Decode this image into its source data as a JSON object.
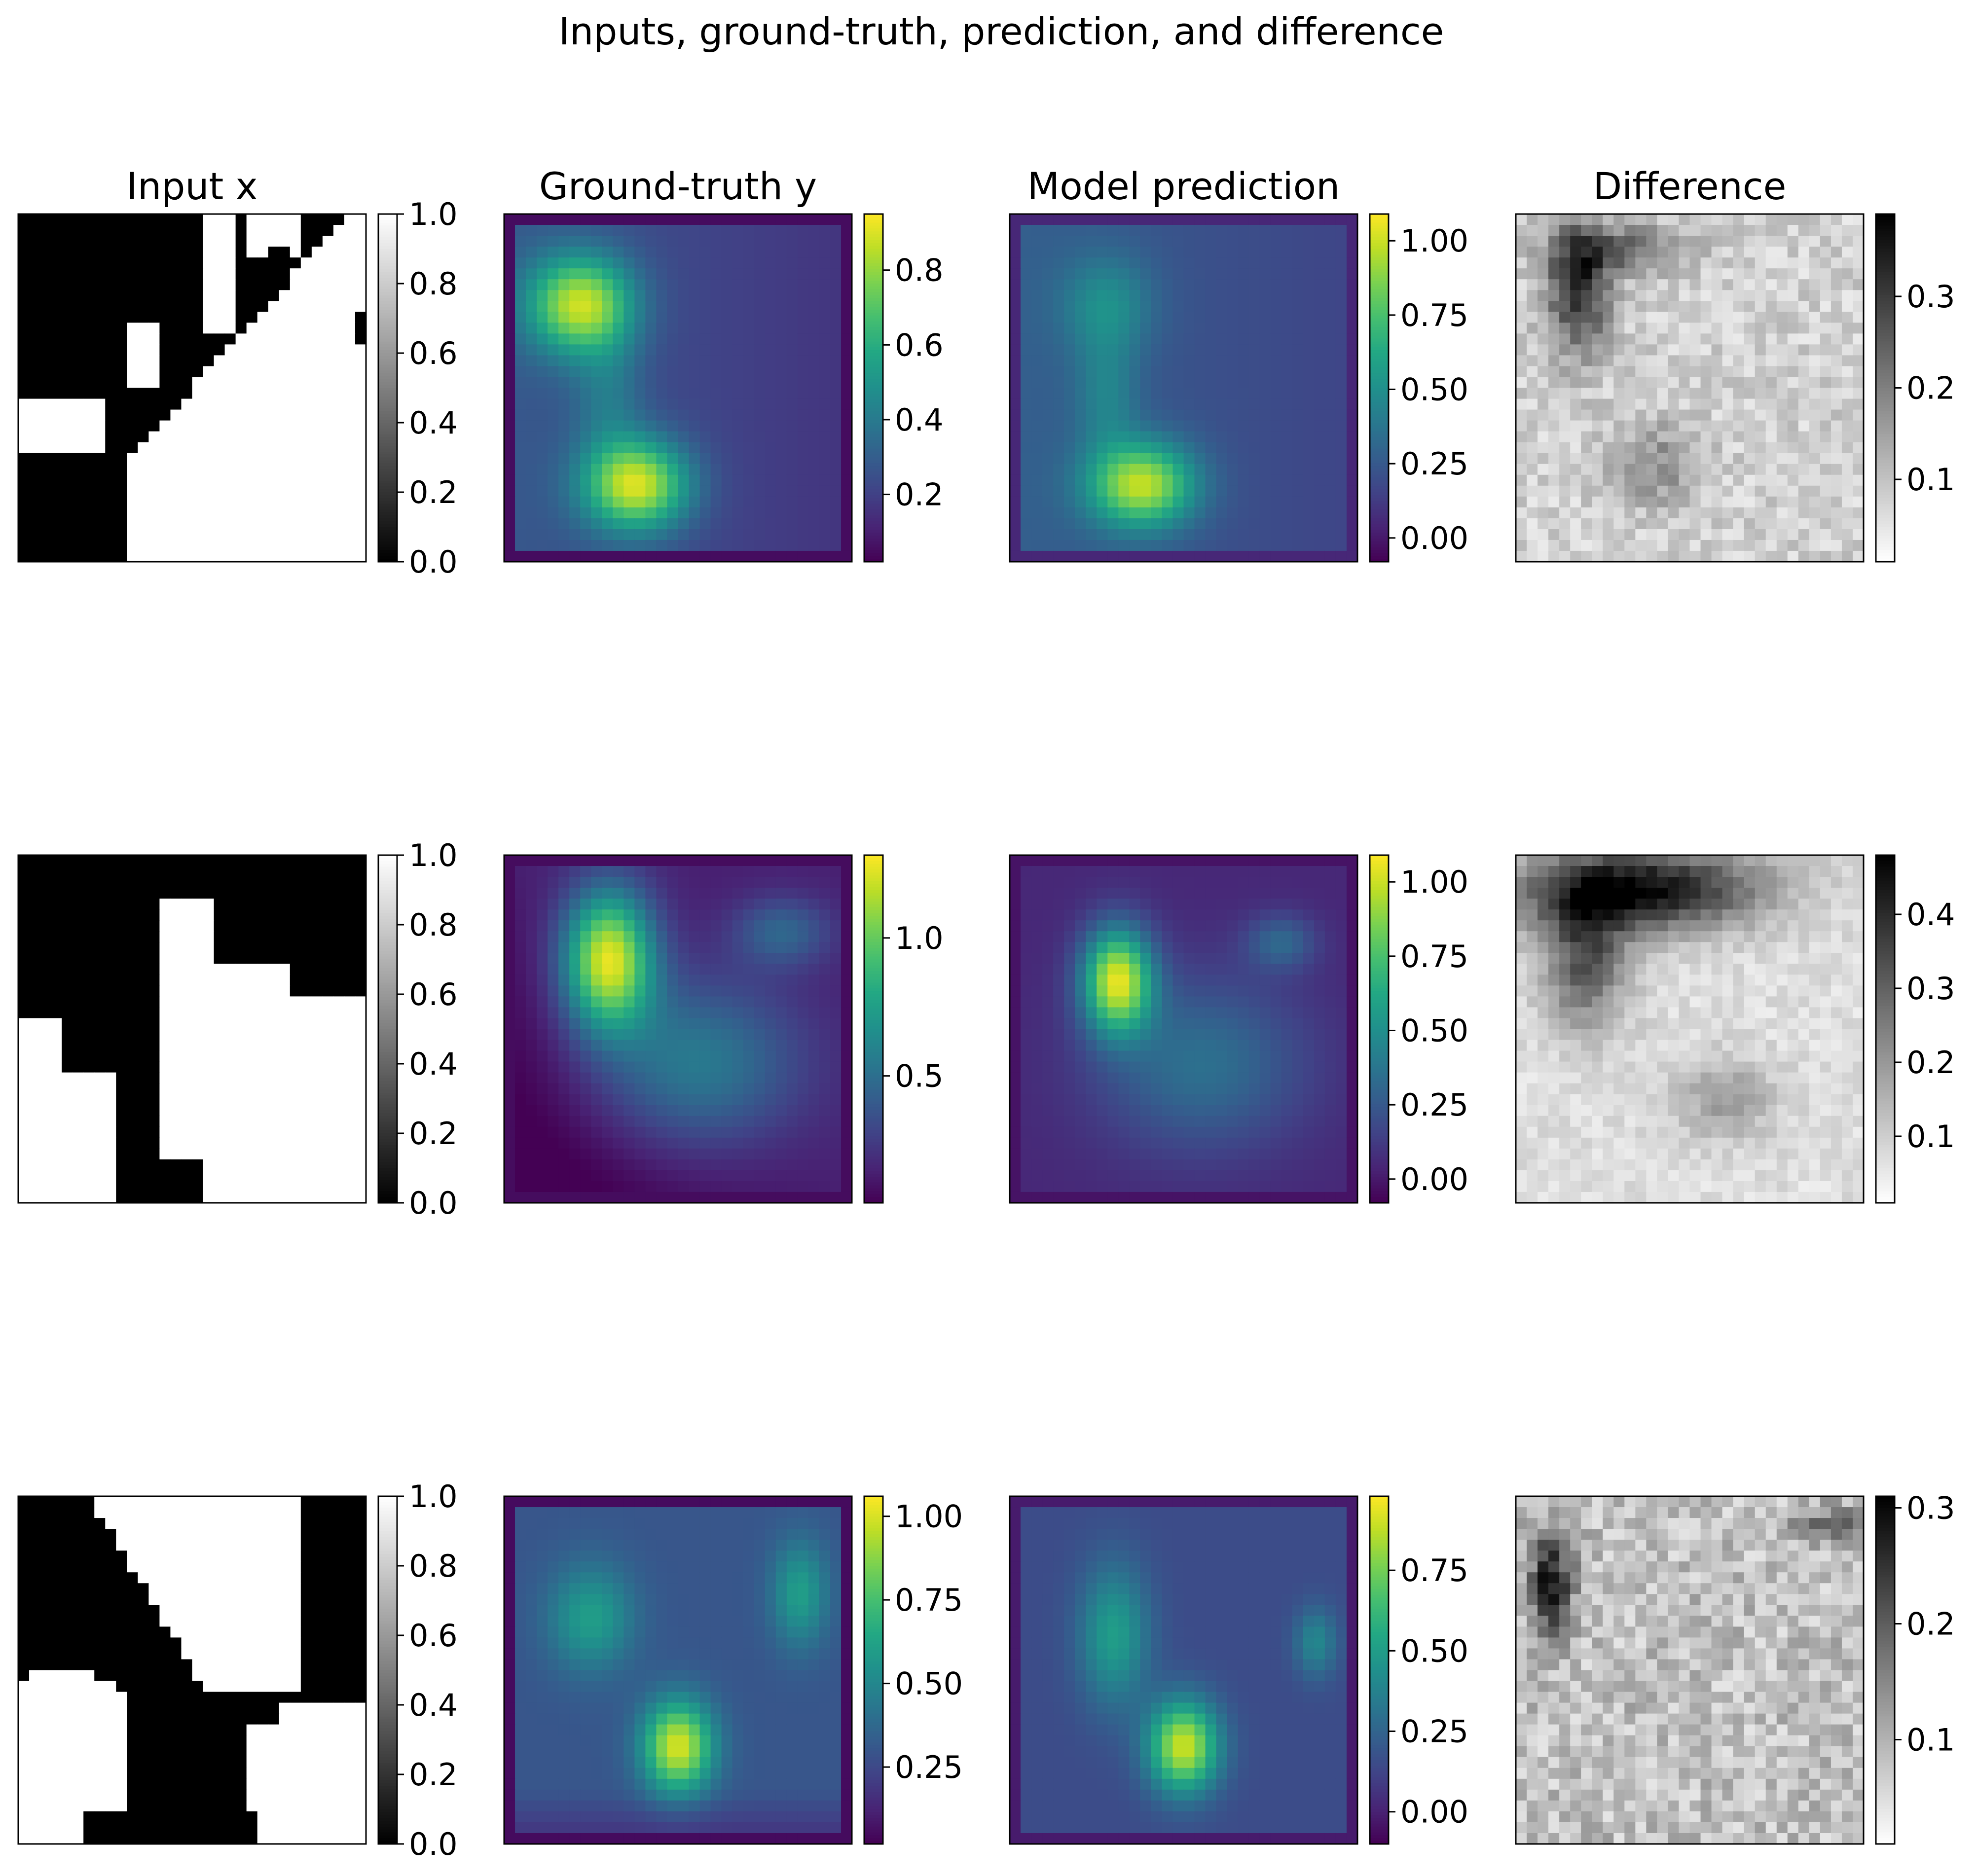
{
  "title": "Inputs, ground-truth, prediction, and difference",
  "chart_data": {
    "type": "heatmap",
    "title": "Inputs, ground-truth, prediction, and difference",
    "grid": false,
    "layout": {
      "rows": 3,
      "columns": 4
    },
    "column_titles": [
      "Input x",
      "Ground-truth y",
      "Model prediction",
      "Difference"
    ],
    "colormaps": [
      "gray",
      "viridis",
      "viridis",
      "gray_r"
    ],
    "rows": [
      {
        "panels": [
          {
            "column": "Input x",
            "cmap": "gray",
            "clim": [
              0.0,
              1.0
            ],
            "ticks": [
              0.0,
              0.2,
              0.4,
              0.6,
              0.8,
              1.0
            ],
            "tick_labels": [
              "0.0",
              "0.2",
              "0.4",
              "0.6",
              "0.8",
              "1.0"
            ]
          },
          {
            "column": "Ground-truth y",
            "cmap": "viridis",
            "clim": [
              0.02,
              0.95
            ],
            "ticks": [
              0.2,
              0.4,
              0.6,
              0.8
            ],
            "tick_labels": [
              "0.2",
              "0.4",
              "0.6",
              "0.8"
            ]
          },
          {
            "column": "Model prediction",
            "cmap": "viridis",
            "clim": [
              -0.08,
              1.09
            ],
            "ticks": [
              0.0,
              0.25,
              0.5,
              0.75,
              1.0
            ],
            "tick_labels": [
              "0.00",
              "0.25",
              "0.50",
              "0.75",
              "1.00"
            ]
          },
          {
            "column": "Difference",
            "cmap": "gray_r",
            "clim": [
              0.01,
              0.39
            ],
            "ticks": [
              0.1,
              0.2,
              0.3
            ],
            "tick_labels": [
              "0.1",
              "0.2",
              "0.3"
            ]
          }
        ]
      },
      {
        "panels": [
          {
            "column": "Input x",
            "cmap": "gray",
            "clim": [
              0.0,
              1.0
            ],
            "ticks": [
              0.0,
              0.2,
              0.4,
              0.6,
              0.8,
              1.0
            ],
            "tick_labels": [
              "0.0",
              "0.2",
              "0.4",
              "0.6",
              "0.8",
              "1.0"
            ]
          },
          {
            "column": "Ground-truth y",
            "cmap": "viridis",
            "clim": [
              0.04,
              1.3
            ],
            "ticks": [
              0.5,
              1.0
            ],
            "tick_labels": [
              "0.5",
              "1.0"
            ]
          },
          {
            "column": "Model prediction",
            "cmap": "viridis",
            "clim": [
              -0.08,
              1.09
            ],
            "ticks": [
              0.0,
              0.25,
              0.5,
              0.75,
              1.0
            ],
            "tick_labels": [
              "0.00",
              "0.25",
              "0.50",
              "0.75",
              "1.00"
            ]
          },
          {
            "column": "Difference",
            "cmap": "gray_r",
            "clim": [
              0.01,
              0.48
            ],
            "ticks": [
              0.1,
              0.2,
              0.3,
              0.4
            ],
            "tick_labels": [
              "0.1",
              "0.2",
              "0.3",
              "0.4"
            ]
          }
        ]
      },
      {
        "panels": [
          {
            "column": "Input x",
            "cmap": "gray",
            "clim": [
              0.0,
              1.0
            ],
            "ticks": [
              0.0,
              0.2,
              0.4,
              0.6,
              0.8,
              1.0
            ],
            "tick_labels": [
              "0.0",
              "0.2",
              "0.4",
              "0.6",
              "0.8",
              "1.0"
            ]
          },
          {
            "column": "Ground-truth y",
            "cmap": "viridis",
            "clim": [
              0.02,
              1.06
            ],
            "ticks": [
              0.25,
              0.5,
              0.75,
              1.0
            ],
            "tick_labels": [
              "0.25",
              "0.50",
              "0.75",
              "1.00"
            ]
          },
          {
            "column": "Model prediction",
            "cmap": "viridis",
            "clim": [
              -0.1,
              0.98
            ],
            "ticks": [
              0.0,
              0.25,
              0.5,
              0.75
            ],
            "tick_labels": [
              "0.00",
              "0.25",
              "0.50",
              "0.75"
            ]
          },
          {
            "column": "Difference",
            "cmap": "gray_r",
            "clim": [
              0.01,
              0.31
            ],
            "ticks": [
              0.1,
              0.2,
              0.3
            ],
            "tick_labels": [
              "0.1",
              "0.2",
              "0.3"
            ]
          }
        ]
      }
    ]
  }
}
